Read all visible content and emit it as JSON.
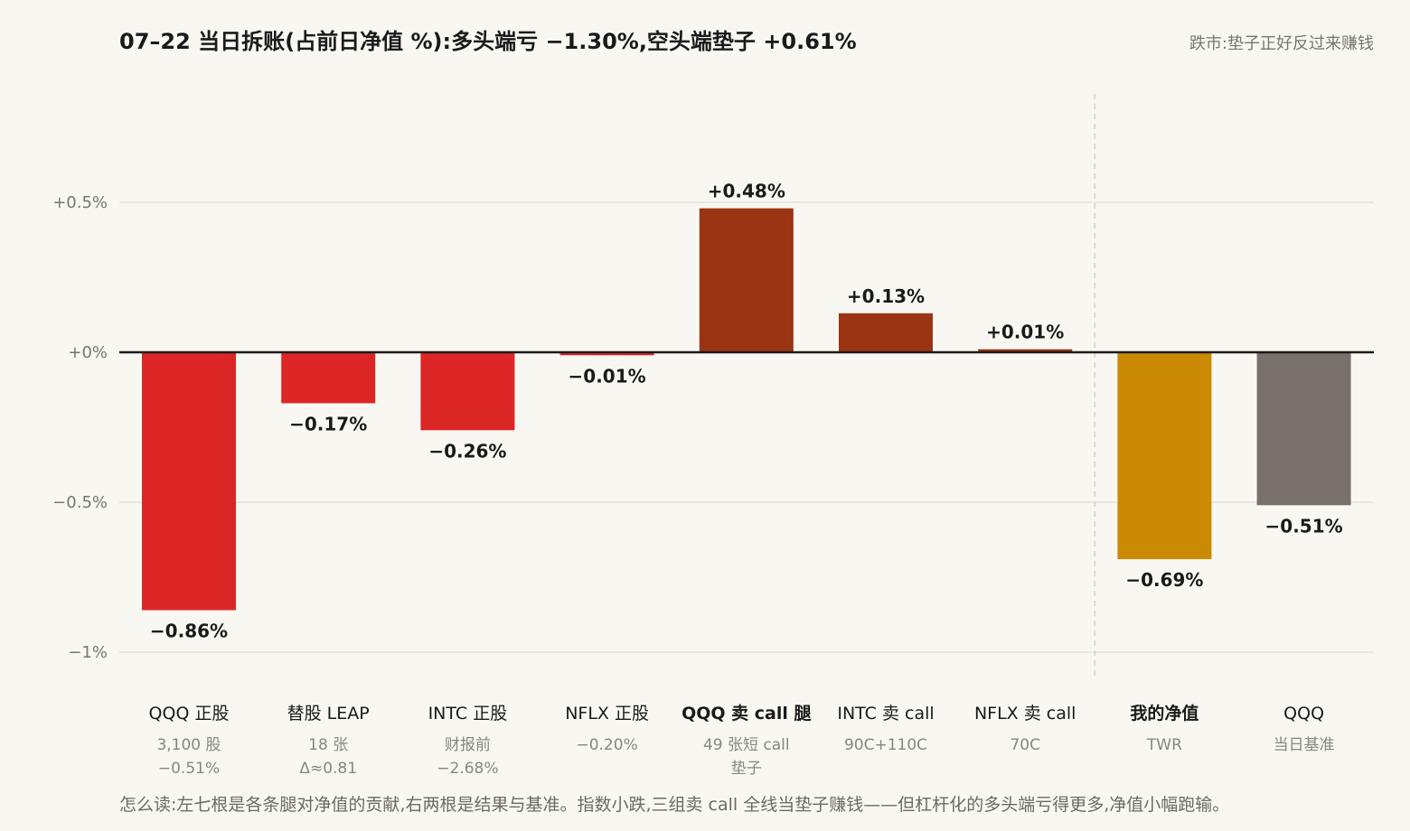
{
  "header": {
    "title": "07–22 当日拆账(占前日净值 %):多头端亏 −1.30%,空头端垫子 +0.61%",
    "subtitle": "跌市:垫子正好反过来赚钱"
  },
  "footnote": "怎么读:左七根是各条腿对净值的贡献,右两根是结果与基准。指数小跌,三组卖 call 全线当垫子赚钱——但杠杆化的多头端亏得更多,净值小幅跑输。",
  "colors": {
    "negative": "#dc2626",
    "positive": "#9a3412",
    "result": "#ca8a04",
    "benchmark": "#78706b",
    "grid": "#e6e2d8",
    "zero": "#1a1a1a",
    "divider": "#d8d2c6"
  },
  "chart_data": {
    "type": "bar",
    "ylim": [
      -1,
      0.5
    ],
    "yticks": [
      {
        "value": 0.5,
        "label": "+0.5%"
      },
      {
        "value": 0,
        "label": "+0%"
      },
      {
        "value": -0.5,
        "label": "−0.5%"
      },
      {
        "value": -1,
        "label": "−1%"
      }
    ],
    "grid": true,
    "bars": [
      {
        "category": "QQQ 正股",
        "sub": [
          "3,100 股",
          "−0.51%"
        ],
        "value": -0.86,
        "label": "−0.86%",
        "kind": "negative",
        "bold": false
      },
      {
        "category": "替股 LEAP",
        "sub": [
          "18 张",
          "Δ≈0.81"
        ],
        "value": -0.17,
        "label": "−0.17%",
        "kind": "negative",
        "bold": false
      },
      {
        "category": "INTC 正股",
        "sub": [
          "财报前",
          "−2.68%"
        ],
        "value": -0.26,
        "label": "−0.26%",
        "kind": "negative",
        "bold": false
      },
      {
        "category": "NFLX 正股",
        "sub": [
          "−0.20%"
        ],
        "value": -0.01,
        "label": "−0.01%",
        "kind": "negative",
        "bold": false
      },
      {
        "category": "QQQ 卖 call 腿",
        "sub": [
          "49 张短 call",
          "垫子"
        ],
        "value": 0.48,
        "label": "+0.48%",
        "kind": "positive",
        "bold": true
      },
      {
        "category": "INTC 卖 call",
        "sub": [
          "90C+110C"
        ],
        "value": 0.13,
        "label": "+0.13%",
        "kind": "positive",
        "bold": false
      },
      {
        "category": "NFLX 卖 call",
        "sub": [
          "70C"
        ],
        "value": 0.01,
        "label": "+0.01%",
        "kind": "positive",
        "bold": false
      },
      {
        "category": "我的净值",
        "sub": [
          "TWR"
        ],
        "value": -0.69,
        "label": "−0.69%",
        "kind": "result",
        "bold": true
      },
      {
        "category": "QQQ",
        "sub": [
          "当日基准"
        ],
        "value": -0.51,
        "label": "−0.51%",
        "kind": "benchmark",
        "bold": false
      }
    ]
  }
}
